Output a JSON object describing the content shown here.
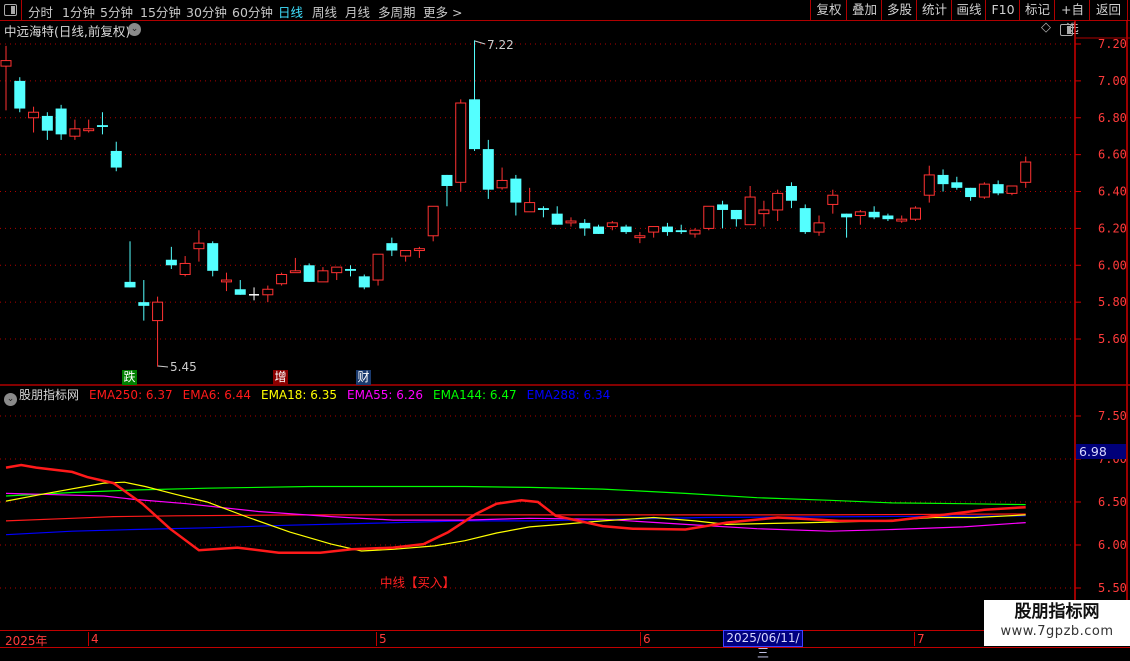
{
  "toolbar": {
    "periods": [
      "分时",
      "1分钟",
      "5分钟",
      "15分钟",
      "30分钟",
      "60分钟",
      "日线",
      "周线",
      "月线",
      "多周期",
      "更多 >"
    ],
    "active_period": "日线",
    "right_buttons": [
      "复权",
      "叠加",
      "多股",
      "统计",
      "画线",
      "F10",
      "标记",
      "+自选",
      "返回"
    ]
  },
  "stock": {
    "title": "中远海特(日线,前复权)"
  },
  "price_axis": {
    "ticks": [
      "7.20",
      "7.00",
      "6.80",
      "6.60",
      "6.40",
      "6.20",
      "6.00",
      "5.80",
      "5.60"
    ],
    "range": [
      5.45,
      7.22
    ]
  },
  "price_annotations": {
    "high_label": "7.22",
    "low_label": "5.45"
  },
  "markers": [
    {
      "label": "跌",
      "color": "#008000"
    },
    {
      "label": "增",
      "color": "#8b0000"
    },
    {
      "label": "财",
      "color": "#1a3a6e"
    }
  ],
  "candles": [
    [
      7.08,
      7.19,
      6.84,
      7.11
    ],
    [
      7.0,
      7.02,
      6.83,
      6.85
    ],
    [
      6.8,
      6.86,
      6.72,
      6.83
    ],
    [
      6.81,
      6.83,
      6.68,
      6.73
    ],
    [
      6.85,
      6.87,
      6.68,
      6.71
    ],
    [
      6.7,
      6.79,
      6.68,
      6.74
    ],
    [
      6.73,
      6.79,
      6.72,
      6.74
    ],
    [
      6.76,
      6.83,
      6.71,
      6.75
    ],
    [
      6.62,
      6.67,
      6.51,
      6.53
    ],
    [
      5.91,
      6.13,
      5.88,
      5.88
    ],
    [
      5.8,
      5.92,
      5.7,
      5.78
    ],
    [
      5.7,
      5.83,
      5.45,
      5.8
    ],
    [
      6.03,
      6.1,
      5.98,
      6.0
    ],
    [
      5.95,
      6.05,
      5.94,
      6.01
    ],
    [
      6.09,
      6.19,
      6.02,
      6.12
    ],
    [
      6.12,
      6.13,
      5.94,
      5.97
    ],
    [
      5.91,
      5.96,
      5.86,
      5.92
    ],
    [
      5.87,
      5.92,
      5.84,
      5.84
    ],
    [
      5.84,
      5.88,
      5.81,
      5.84
    ],
    [
      5.84,
      5.89,
      5.8,
      5.87
    ],
    [
      5.9,
      5.96,
      5.89,
      5.95
    ],
    [
      5.96,
      6.04,
      5.96,
      5.97
    ],
    [
      6.0,
      6.01,
      5.91,
      5.91
    ],
    [
      5.91,
      5.99,
      5.91,
      5.97
    ],
    [
      5.96,
      5.99,
      5.92,
      5.99
    ],
    [
      5.98,
      6.0,
      5.94,
      5.97
    ],
    [
      5.94,
      5.95,
      5.87,
      5.88
    ],
    [
      5.92,
      6.06,
      5.89,
      6.06
    ],
    [
      6.12,
      6.15,
      6.05,
      6.08
    ],
    [
      6.05,
      6.08,
      6.02,
      6.08
    ],
    [
      6.08,
      6.1,
      6.04,
      6.09
    ],
    [
      6.16,
      6.32,
      6.13,
      6.32
    ],
    [
      6.49,
      6.49,
      6.32,
      6.43
    ],
    [
      6.45,
      6.9,
      6.4,
      6.88
    ],
    [
      6.9,
      7.22,
      6.62,
      6.63
    ],
    [
      6.63,
      6.68,
      6.36,
      6.41
    ],
    [
      6.42,
      6.53,
      6.41,
      6.46
    ],
    [
      6.47,
      6.49,
      6.27,
      6.34
    ],
    [
      6.29,
      6.42,
      6.29,
      6.34
    ],
    [
      6.31,
      6.32,
      6.26,
      6.3
    ],
    [
      6.28,
      6.32,
      6.22,
      6.22
    ],
    [
      6.23,
      6.26,
      6.21,
      6.24
    ],
    [
      6.23,
      6.25,
      6.16,
      6.2
    ],
    [
      6.21,
      6.22,
      6.17,
      6.17
    ],
    [
      6.21,
      6.24,
      6.19,
      6.23
    ],
    [
      6.21,
      6.22,
      6.17,
      6.18
    ],
    [
      6.15,
      6.18,
      6.12,
      6.16
    ],
    [
      6.18,
      6.21,
      6.15,
      6.21
    ],
    [
      6.21,
      6.23,
      6.16,
      6.18
    ],
    [
      6.19,
      6.22,
      6.17,
      6.18
    ],
    [
      6.17,
      6.2,
      6.15,
      6.19
    ],
    [
      6.2,
      6.32,
      6.19,
      6.32
    ],
    [
      6.33,
      6.35,
      6.2,
      6.3
    ],
    [
      6.3,
      6.3,
      6.21,
      6.25
    ],
    [
      6.22,
      6.43,
      6.22,
      6.37
    ],
    [
      6.28,
      6.35,
      6.21,
      6.3
    ],
    [
      6.3,
      6.41,
      6.24,
      6.39
    ],
    [
      6.43,
      6.45,
      6.31,
      6.35
    ],
    [
      6.31,
      6.33,
      6.17,
      6.18
    ],
    [
      6.18,
      6.27,
      6.16,
      6.23
    ],
    [
      6.33,
      6.41,
      6.28,
      6.38
    ],
    [
      6.28,
      6.28,
      6.15,
      6.26
    ],
    [
      6.27,
      6.3,
      6.22,
      6.29
    ],
    [
      6.29,
      6.32,
      6.25,
      6.26
    ],
    [
      6.27,
      6.28,
      6.24,
      6.25
    ],
    [
      6.24,
      6.27,
      6.23,
      6.25
    ],
    [
      6.25,
      6.32,
      6.24,
      6.31
    ],
    [
      6.38,
      6.54,
      6.34,
      6.49
    ],
    [
      6.49,
      6.52,
      6.4,
      6.44
    ],
    [
      6.45,
      6.48,
      6.41,
      6.42
    ],
    [
      6.42,
      6.42,
      6.35,
      6.37
    ],
    [
      6.37,
      6.45,
      6.36,
      6.44
    ],
    [
      6.44,
      6.46,
      6.38,
      6.39
    ],
    [
      6.39,
      6.43,
      6.38,
      6.43
    ],
    [
      6.45,
      6.59,
      6.42,
      6.56
    ]
  ],
  "colors": {
    "up": "#ff3232",
    "down": "#54ffff",
    "flat": "#ffffff",
    "grid": "#b00000",
    "axis_text": "#ff3b3b"
  },
  "indicator": {
    "name": "股朋指标网",
    "legend": [
      {
        "label": "EMA250:",
        "value": "6.37",
        "color": "#ff1a1a"
      },
      {
        "label": "EMA6:",
        "value": "6.44",
        "color": "#ff1a1a"
      },
      {
        "label": "EMA18:",
        "value": "6.35",
        "color": "#ffff00"
      },
      {
        "label": "EMA55:",
        "value": "6.26",
        "color": "#ff00ff"
      },
      {
        "label": "EMA144:",
        "value": "6.47",
        "color": "#00ff00"
      },
      {
        "label": "EMA288:",
        "value": "6.34",
        "color": "#0000ff"
      }
    ],
    "axis_ticks": [
      "7.50",
      "7.00",
      "6.50",
      "6.00",
      "5.50"
    ],
    "cursor_value": "6.98",
    "signal_text": "中线【买入】",
    "series": {
      "EMA250": [
        [
          0,
          6.28
        ],
        [
          4.8,
          6.31
        ],
        [
          7.8,
          6.33
        ],
        [
          12.3,
          6.34
        ],
        [
          22.1,
          6.35
        ],
        [
          38,
          6.35
        ],
        [
          58.3,
          6.35
        ],
        [
          74,
          6.36
        ]
      ],
      "EMA288": [
        [
          0,
          6.12
        ],
        [
          4.8,
          6.16
        ],
        [
          9.3,
          6.18
        ],
        [
          14.6,
          6.2
        ],
        [
          20.6,
          6.23
        ],
        [
          25.8,
          6.25
        ],
        [
          33.3,
          6.28
        ],
        [
          38,
          6.28
        ],
        [
          50.8,
          6.32
        ],
        [
          62,
          6.33
        ],
        [
          74,
          6.34
        ]
      ],
      "EMA144": [
        [
          0,
          6.57
        ],
        [
          4.8,
          6.61
        ],
        [
          9.3,
          6.64
        ],
        [
          14.6,
          6.66
        ],
        [
          22.1,
          6.68
        ],
        [
          29.5,
          6.68
        ],
        [
          33.3,
          6.68
        ],
        [
          38,
          6.67
        ],
        [
          43.3,
          6.65
        ],
        [
          49.3,
          6.6
        ],
        [
          54.5,
          6.55
        ],
        [
          59.8,
          6.52
        ],
        [
          64.3,
          6.49
        ],
        [
          69.5,
          6.48
        ],
        [
          74,
          6.47
        ]
      ],
      "EMA55": [
        [
          0,
          6.6
        ],
        [
          2.6,
          6.59
        ],
        [
          7.1,
          6.57
        ],
        [
          9.3,
          6.53
        ],
        [
          13.1,
          6.48
        ],
        [
          18.3,
          6.39
        ],
        [
          23.6,
          6.33
        ],
        [
          28.1,
          6.29
        ],
        [
          33.3,
          6.29
        ],
        [
          38,
          6.31
        ],
        [
          43.3,
          6.3
        ],
        [
          49.3,
          6.24
        ],
        [
          54.5,
          6.19
        ],
        [
          59.8,
          6.16
        ],
        [
          64.3,
          6.18
        ],
        [
          69.5,
          6.21
        ],
        [
          74,
          6.26
        ]
      ],
      "EMA18": [
        [
          0,
          6.51
        ],
        [
          2.6,
          6.59
        ],
        [
          7.1,
          6.72
        ],
        [
          8.6,
          6.73
        ],
        [
          10.1,
          6.68
        ],
        [
          12.3,
          6.59
        ],
        [
          14.6,
          6.5
        ],
        [
          17.6,
          6.32
        ],
        [
          20.6,
          6.15
        ],
        [
          23.6,
          6.01
        ],
        [
          25.8,
          5.93
        ],
        [
          28.1,
          5.95
        ],
        [
          31.1,
          5.99
        ],
        [
          33.3,
          6.05
        ],
        [
          35.6,
          6.14
        ],
        [
          38,
          6.21
        ],
        [
          40.3,
          6.24
        ],
        [
          43.3,
          6.28
        ],
        [
          47,
          6.32
        ],
        [
          50,
          6.28
        ],
        [
          52.3,
          6.24
        ],
        [
          58.3,
          6.26
        ],
        [
          63.5,
          6.28
        ],
        [
          67.3,
          6.32
        ],
        [
          70.3,
          6.32
        ],
        [
          74,
          6.35
        ]
      ],
      "EMA6": [
        [
          0,
          6.9
        ],
        [
          1.1,
          6.93
        ],
        [
          2.2,
          6.9
        ],
        [
          4.8,
          6.85
        ],
        [
          5.9,
          6.79
        ],
        [
          7.8,
          6.72
        ],
        [
          9.9,
          6.48
        ],
        [
          11.9,
          6.19
        ],
        [
          14,
          5.94
        ],
        [
          16.8,
          5.97
        ],
        [
          19.8,
          5.91
        ],
        [
          22.8,
          5.91
        ],
        [
          25.1,
          5.95
        ],
        [
          28.1,
          5.97
        ],
        [
          30.3,
          6.01
        ],
        [
          32.1,
          6.15
        ],
        [
          34.1,
          6.36
        ],
        [
          35.6,
          6.48
        ],
        [
          37.4,
          6.52
        ],
        [
          38.6,
          6.5
        ],
        [
          39.9,
          6.34
        ],
        [
          43.3,
          6.22
        ],
        [
          45.5,
          6.19
        ],
        [
          49.3,
          6.18
        ],
        [
          52.3,
          6.26
        ],
        [
          56,
          6.32
        ],
        [
          60.5,
          6.28
        ],
        [
          64.3,
          6.28
        ],
        [
          68,
          6.35
        ],
        [
          71,
          6.41
        ],
        [
          74,
          6.44
        ]
      ]
    }
  },
  "date_axis": {
    "labels": [
      "2025年",
      "4",
      "5",
      "6",
      "7"
    ],
    "cursor_date": "2025/06/11/三"
  },
  "watermark": {
    "title": "股朋指标网",
    "url": "www.7gpzb.com"
  }
}
